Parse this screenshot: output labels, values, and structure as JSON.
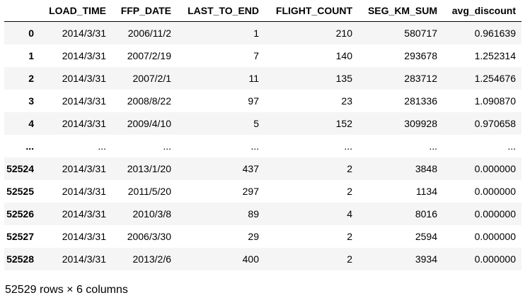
{
  "table": {
    "index_header": "",
    "columns": [
      "LOAD_TIME",
      "FFP_DATE",
      "LAST_TO_END",
      "FLIGHT_COUNT",
      "SEG_KM_SUM",
      "avg_discount"
    ],
    "rows": [
      {
        "index": "0",
        "cells": [
          "2014/3/31",
          "2006/11/2",
          "1",
          "210",
          "580717",
          "0.961639"
        ]
      },
      {
        "index": "1",
        "cells": [
          "2014/3/31",
          "2007/2/19",
          "7",
          "140",
          "293678",
          "1.252314"
        ]
      },
      {
        "index": "2",
        "cells": [
          "2014/3/31",
          "2007/2/1",
          "11",
          "135",
          "283712",
          "1.254676"
        ]
      },
      {
        "index": "3",
        "cells": [
          "2014/3/31",
          "2008/8/22",
          "97",
          "23",
          "281336",
          "1.090870"
        ]
      },
      {
        "index": "4",
        "cells": [
          "2014/3/31",
          "2009/4/10",
          "5",
          "152",
          "309928",
          "0.970658"
        ]
      },
      {
        "index": "...",
        "cells": [
          "...",
          "...",
          "...",
          "...",
          "...",
          "..."
        ]
      },
      {
        "index": "52524",
        "cells": [
          "2014/3/31",
          "2013/1/20",
          "437",
          "2",
          "3848",
          "0.000000"
        ]
      },
      {
        "index": "52525",
        "cells": [
          "2014/3/31",
          "2011/5/20",
          "297",
          "2",
          "1134",
          "0.000000"
        ]
      },
      {
        "index": "52526",
        "cells": [
          "2014/3/31",
          "2010/3/8",
          "89",
          "4",
          "8016",
          "0.000000"
        ]
      },
      {
        "index": "52527",
        "cells": [
          "2014/3/31",
          "2006/3/30",
          "29",
          "2",
          "2594",
          "0.000000"
        ]
      },
      {
        "index": "52528",
        "cells": [
          "2014/3/31",
          "2013/2/6",
          "400",
          "2",
          "3934",
          "0.000000"
        ]
      }
    ]
  },
  "footer": {
    "summary": "52529 rows × 6 columns"
  }
}
